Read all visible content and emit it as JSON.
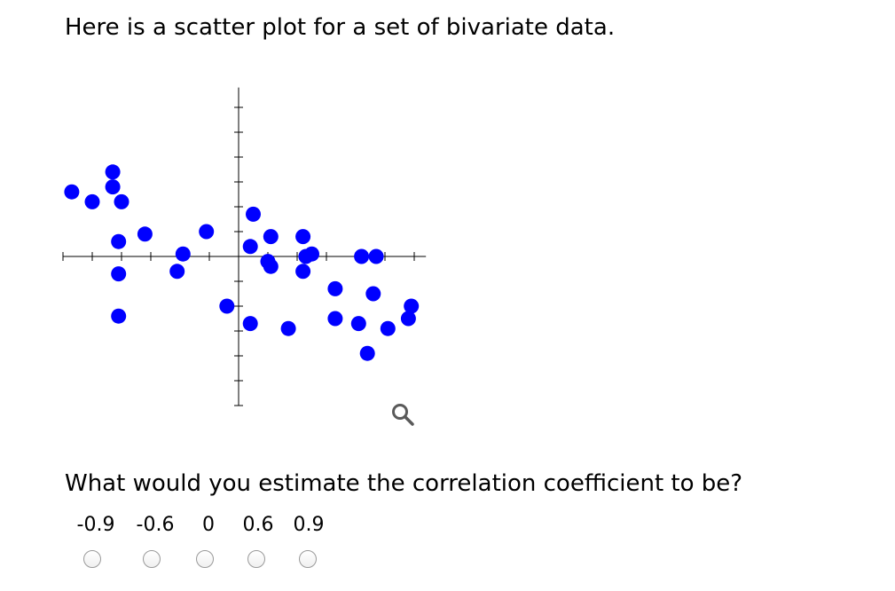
{
  "intro_text": "Here is a scatter plot for a set of bivariate data.",
  "question_text": "What would you estimate the correlation coefficient to be?",
  "choices": [
    "-0.9",
    "-0.6",
    "0",
    "0.6",
    "0.9"
  ],
  "zoom_icon": "magnifier-icon",
  "colors": {
    "points": "#0000ff",
    "axes": "#000000",
    "zoom": "#5a5a5a"
  },
  "chart_data": {
    "type": "scatter",
    "xlim": [
      -6,
      6.4
    ],
    "ylim": [
      -6,
      6.8
    ],
    "grid": false,
    "axis_ticks": true,
    "tick_labels": false,
    "points": [
      [
        -5.7,
        2.6
      ],
      [
        -4.3,
        3.4
      ],
      [
        -5.0,
        2.2
      ],
      [
        -4.3,
        2.8
      ],
      [
        -4.0,
        2.2
      ],
      [
        -4.1,
        0.6
      ],
      [
        -3.2,
        0.9
      ],
      [
        -4.1,
        -0.7
      ],
      [
        -4.1,
        -2.4
      ],
      [
        -1.9,
        0.1
      ],
      [
        -2.1,
        -0.6
      ],
      [
        -1.1,
        1.0
      ],
      [
        -0.4,
        -2.0
      ],
      [
        0.5,
        1.7
      ],
      [
        0.4,
        0.4
      ],
      [
        1.1,
        0.8
      ],
      [
        1.0,
        -0.2
      ],
      [
        1.1,
        -0.4
      ],
      [
        2.2,
        0.8
      ],
      [
        2.3,
        0.0
      ],
      [
        2.5,
        0.1
      ],
      [
        2.2,
        -0.6
      ],
      [
        3.3,
        -1.3
      ],
      [
        3.3,
        -2.5
      ],
      [
        4.6,
        -1.5
      ],
      [
        4.2,
        0.0
      ],
      [
        4.7,
        0.0
      ],
      [
        1.7,
        -2.9
      ],
      [
        4.1,
        -2.7
      ],
      [
        4.4,
        -3.9
      ],
      [
        5.1,
        -2.9
      ],
      [
        5.8,
        -2.5
      ],
      [
        5.9,
        -2.0
      ],
      [
        0.4,
        -2.7
      ]
    ]
  }
}
